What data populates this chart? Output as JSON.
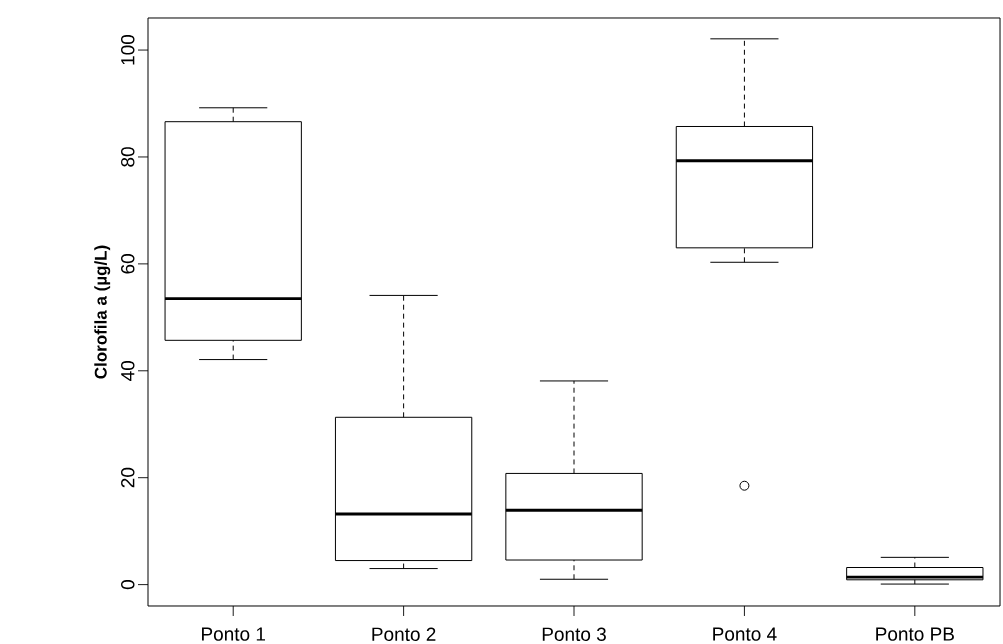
{
  "chart_data": {
    "type": "box",
    "ylabel": "Clorofila a (µg/L)",
    "categories": [
      "Ponto 1",
      "Ponto 2",
      "Ponto 3",
      "Ponto 4",
      "Ponto PB"
    ],
    "boxes": [
      {
        "low": 42.1,
        "q1": 45.7,
        "median": 53.5,
        "q3": 86.6,
        "high": 89.2
      },
      {
        "low": 3.0,
        "q1": 4.5,
        "median": 13.2,
        "q3": 31.3,
        "high": 54.1
      },
      {
        "low": 1.0,
        "q1": 4.6,
        "median": 13.9,
        "q3": 20.8,
        "high": 38.1
      },
      {
        "low": 60.3,
        "q1": 63.0,
        "median": 79.3,
        "q3": 85.7,
        "high": 102.1,
        "outliers": [
          18.5
        ]
      },
      {
        "low": 0.1,
        "q1": 0.9,
        "median": 1.4,
        "q3": 3.2,
        "high": 5.1
      }
    ],
    "ylim": [
      -4,
      106
    ],
    "yticks": [
      0,
      20,
      40,
      60,
      80,
      100
    ]
  }
}
